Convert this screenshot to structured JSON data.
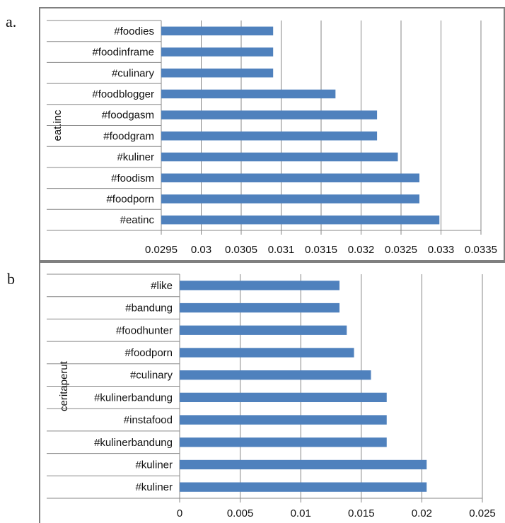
{
  "panels": [
    {
      "label": "a.",
      "chart_data": {
        "type": "bar",
        "orientation": "horizontal",
        "ylabel": "eat.inc",
        "categories": [
          "#foodies",
          "#foodinframe",
          "#culinary",
          "#foodblogger",
          "#foodgasm",
          "#foodgram",
          "#kuliner",
          "#foodism",
          "#foodporn",
          "#eatinc"
        ],
        "values": [
          0.0309,
          0.0309,
          0.0309,
          0.03168,
          0.0322,
          0.0322,
          0.03246,
          0.03273,
          0.03273,
          0.03298
        ],
        "xlim": [
          0.0295,
          0.0335
        ],
        "xticks": [
          "0.0295",
          "0.03",
          "0.0305",
          "0.031",
          "0.0315",
          "0.032",
          "0.0325",
          "0.033",
          "0.0335"
        ],
        "grid": "vertical",
        "bar_color": "#4f81bd"
      }
    },
    {
      "label": "b",
      "chart_data": {
        "type": "bar",
        "orientation": "horizontal",
        "ylabel": "ceritaperut",
        "categories": [
          "#like",
          "#bandung",
          "#foodhunter",
          "#foodporn",
          "#culinary",
          "#kulinerbandung",
          "#instafood",
          "#kulinerbandung",
          "#kuliner",
          "#kuliner"
        ],
        "values": [
          0.0132,
          0.0132,
          0.0138,
          0.0144,
          0.0158,
          0.0171,
          0.0171,
          0.0171,
          0.0204,
          0.0204
        ],
        "xlim": [
          0,
          0.025
        ],
        "xticks": [
          "0",
          "0.005",
          "0.01",
          "0.015",
          "0.02",
          "0.025"
        ],
        "grid": "vertical",
        "bar_color": "#4f81bd"
      }
    }
  ]
}
